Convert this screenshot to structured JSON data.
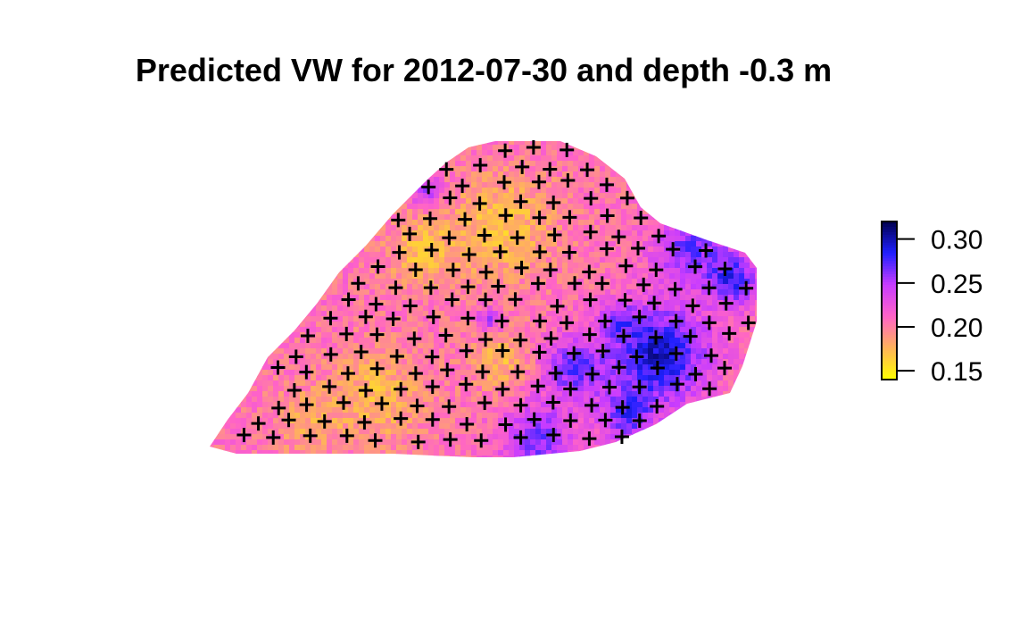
{
  "chart_data": {
    "type": "heatmap",
    "title": "Predicted VW for 2012-07-30 and depth -0.3 m",
    "colorbar": {
      "ticks": [
        0.15,
        0.2,
        0.25,
        0.3
      ],
      "tick_labels": [
        "0.15",
        "0.20",
        "0.25",
        "0.30"
      ],
      "range": [
        0.14,
        0.32
      ],
      "colors": [
        "#ffff00",
        "#ffb35a",
        "#ff63c8",
        "#c83cff",
        "#2020ff",
        "#00004c"
      ]
    },
    "point_marker": "+",
    "points_shown": true
  }
}
